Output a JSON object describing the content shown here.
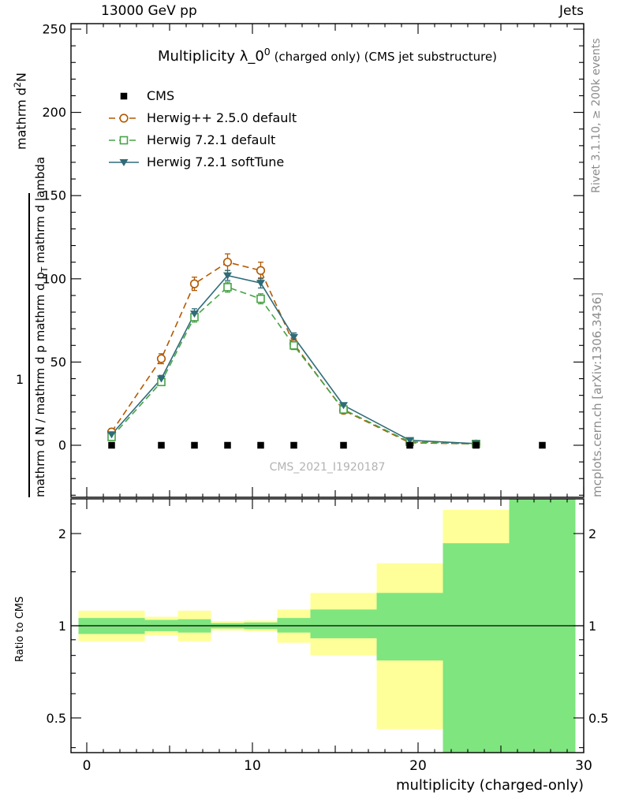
{
  "header": {
    "left": "13000 GeV pp",
    "right": "Jets"
  },
  "plot_title_rich": [
    {
      "t": "Multiplicity λ_0"
    },
    {
      "t": "0",
      "sup": true
    },
    {
      "t": " (charged only) (CMS jet substructure)",
      "small": true
    }
  ],
  "watermark": "CMS_2021_I1920187",
  "side": {
    "rivet": "Rivet 3.1.10, ≥ 200k events",
    "mcplots": "mcplots.cern.ch [arXiv:1306.3436]"
  },
  "ylabel": {
    "outer_rich": [
      {
        "t": "mathrm d"
      },
      {
        "t": "2",
        "sup": true
      },
      {
        "t": "N"
      }
    ],
    "one": "1",
    "inner_rich": [
      {
        "t": "mathrm d N / mathrm d p mathrm d p"
      },
      {
        "t": "T",
        "sub": true
      },
      {
        "t": " mathrm d lambda"
      }
    ]
  },
  "xlabel": "multiplicity (charged-only)",
  "legend": {
    "items": [
      {
        "label": "CMS"
      },
      {
        "label": "Herwig++ 2.5.0 default"
      },
      {
        "label": "Herwig 7.2.1 default"
      },
      {
        "label": "Herwig 7.2.1 softTune"
      }
    ]
  },
  "chart_data": {
    "type": "line",
    "title": "Multiplicity λ_0^0 (charged only) (CMS jet substructure)",
    "xlabel": "multiplicity (charged-only)",
    "x_points": [
      1.5,
      4.5,
      6.5,
      8.5,
      10.5,
      12.5,
      15.5,
      19.5,
      23.5
    ],
    "main_panel": {
      "ylim": [
        -31,
        253
      ],
      "yticks": [
        0,
        50,
        100,
        150,
        200,
        250
      ],
      "y_minor_step": 10,
      "xlim": [
        -0.95,
        30
      ],
      "xticks": [
        0,
        10,
        20,
        30
      ],
      "x_minor_step": 1,
      "x_medium_step": 5,
      "cms_reference": {
        "label": "CMS",
        "marker": "filled-square",
        "color": "#000000",
        "x": [
          1.5,
          4.5,
          6.5,
          8.5,
          10.5,
          12.5,
          15.5,
          19.5,
          23.5,
          27.5
        ],
        "y": [
          0,
          0,
          0,
          0,
          0,
          0,
          0,
          0,
          0,
          0
        ]
      },
      "series": [
        {
          "name": "Herwig++ 2.5.0 default",
          "color": "#b25900",
          "style": "dashed",
          "marker": "open-circle",
          "y": [
            8,
            52,
            97,
            110,
            105,
            61,
            21,
            1.5,
            0.8
          ],
          "yerr": [
            2,
            3,
            4,
            5,
            5,
            3,
            2,
            1,
            0.8
          ]
        },
        {
          "name": "Herwig 7.2.1 default",
          "color": "#46a346",
          "style": "dashed",
          "marker": "open-square",
          "y": [
            5,
            38,
            77,
            95,
            88,
            60,
            21.5,
            2,
            0.8
          ],
          "yerr": [
            1.5,
            2,
            3,
            3,
            3,
            2.5,
            1.5,
            0.8,
            0.5
          ]
        },
        {
          "name": "Herwig 7.2.1 softTune",
          "color": "#2f6b78",
          "style": "solid",
          "marker": "filled-triangle-down",
          "y": [
            6.5,
            40,
            79,
            102,
            97.5,
            65,
            24,
            3,
            1
          ],
          "yerr": [
            1.5,
            2,
            3,
            3,
            3,
            2.5,
            1.5,
            0.8,
            0.5
          ]
        }
      ]
    },
    "ratio_panel": {
      "ylabel": "Ratio to CMS",
      "yscale": "log",
      "ylim": [
        0.385,
        2.6
      ],
      "yticks": [
        0.5,
        1,
        2
      ],
      "y_minor": [
        0.4,
        0.6,
        0.7,
        0.8,
        0.9,
        1.5,
        2.5
      ],
      "reference_line": 1,
      "band_colors": {
        "outer": "#ffff99",
        "inner": "#7fe57f"
      },
      "bands": [
        {
          "x0": -0.5,
          "x1": 3.5,
          "outer": [
            0.89,
            1.12
          ],
          "inner": [
            0.94,
            1.06
          ]
        },
        {
          "x0": 3.5,
          "x1": 5.5,
          "outer": [
            0.93,
            1.07
          ],
          "inner": [
            0.96,
            1.045
          ]
        },
        {
          "x0": 5.5,
          "x1": 7.5,
          "outer": [
            0.89,
            1.12
          ],
          "inner": [
            0.95,
            1.05
          ]
        },
        {
          "x0": 7.5,
          "x1": 9.5,
          "outer": [
            0.965,
            1.035
          ],
          "inner": [
            0.98,
            1.02
          ]
        },
        {
          "x0": 9.5,
          "x1": 11.5,
          "outer": [
            0.96,
            1.04
          ],
          "inner": [
            0.975,
            1.025
          ]
        },
        {
          "x0": 11.5,
          "x1": 13.5,
          "outer": [
            0.88,
            1.13
          ],
          "inner": [
            0.95,
            1.06
          ]
        },
        {
          "x0": 13.5,
          "x1": 17.5,
          "outer": [
            0.8,
            1.28
          ],
          "inner": [
            0.91,
            1.13
          ]
        },
        {
          "x0": 17.5,
          "x1": 21.5,
          "outer": [
            0.46,
            1.6
          ],
          "inner": [
            0.77,
            1.28
          ]
        },
        {
          "x0": 21.5,
          "x1": 25.5,
          "outer": [
            0.385,
            2.39
          ],
          "inner": [
            0.385,
            1.86
          ]
        },
        {
          "x0": 25.5,
          "x1": 29.5,
          "outer": null,
          "inner": [
            0.385,
            2.6
          ]
        }
      ]
    }
  }
}
